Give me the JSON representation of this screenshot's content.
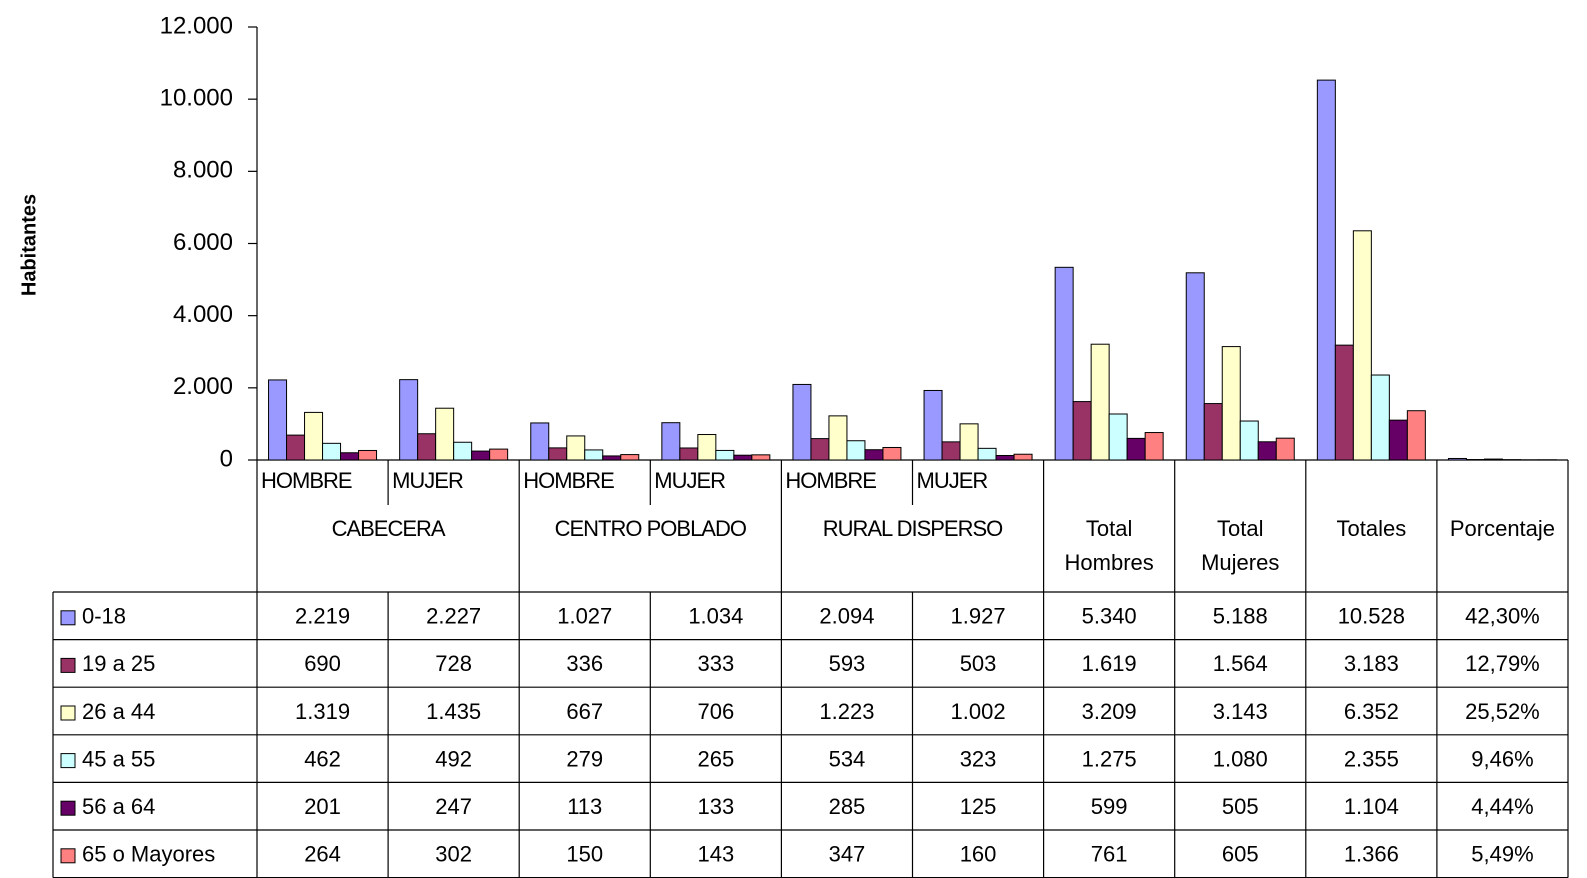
{
  "chart_data": {
    "type": "bar",
    "y_label": "Habitantes",
    "categories": [
      "HOMBRE",
      "MUJER",
      "HOMBRE",
      "MUJER",
      "HOMBRE",
      "MUJER",
      "Total Hombres",
      "Total Mujeres",
      "Totales",
      "Porcentaje"
    ],
    "category_groups": [
      "CABECERA",
      "CENTRO POBLADO",
      "RURAL DISPERSO"
    ],
    "ylim": [
      0,
      12000
    ],
    "yticks": [
      0,
      {
        "value": 2000,
        "label": "2.000"
      },
      {
        "value": 4000,
        "label": "4.000"
      },
      {
        "value": 6000,
        "label": "6.000"
      },
      {
        "value": 8000,
        "label": "8.000"
      },
      {
        "value": 10000,
        "label": "10.000"
      },
      {
        "value": 12000,
        "label": "12.000"
      }
    ],
    "series": [
      {
        "name": "0-18",
        "color": "#9999ff",
        "values": [
          2219,
          2227,
          1027,
          1034,
          2094,
          1927,
          5340,
          5188,
          10528,
          42.3
        ],
        "value_labels": [
          "2.219",
          "2.227",
          "1.027",
          "1.034",
          "2.094",
          "1.927",
          "5.340",
          "5.188",
          "10.528",
          "42,30%"
        ]
      },
      {
        "name": "19 a 25",
        "color": "#993366",
        "values": [
          690,
          728,
          336,
          333,
          593,
          503,
          1619,
          1564,
          3183,
          12.79
        ],
        "value_labels": [
          "690",
          "728",
          "336",
          "333",
          "593",
          "503",
          "1.619",
          "1.564",
          "3.183",
          "12,79%"
        ]
      },
      {
        "name": "26 a 44",
        "color": "#ffffcc",
        "values": [
          1319,
          1435,
          667,
          706,
          1223,
          1002,
          3209,
          3143,
          6352,
          25.52
        ],
        "value_labels": [
          "1.319",
          "1.435",
          "667",
          "706",
          "1.223",
          "1.002",
          "3.209",
          "3.143",
          "6.352",
          "25,52%"
        ]
      },
      {
        "name": "45 a 55",
        "color": "#ccffff",
        "values": [
          462,
          492,
          279,
          265,
          534,
          323,
          1275,
          1080,
          2355,
          9.46
        ],
        "value_labels": [
          "462",
          "492",
          "279",
          "265",
          "534",
          "323",
          "1.275",
          "1.080",
          "2.355",
          "9,46%"
        ]
      },
      {
        "name": "56 a 64",
        "color": "#660066",
        "values": [
          201,
          247,
          113,
          133,
          285,
          125,
          599,
          505,
          1104,
          4.44
        ],
        "value_labels": [
          "201",
          "247",
          "113",
          "133",
          "285",
          "125",
          "599",
          "505",
          "1.104",
          "4,44%"
        ]
      },
      {
        "name": "65 o Mayores",
        "color": "#ff8080",
        "values": [
          264,
          302,
          150,
          143,
          347,
          160,
          761,
          605,
          1366,
          5.49
        ],
        "value_labels": [
          "264",
          "302",
          "150",
          "143",
          "347",
          "160",
          "761",
          "605",
          "1.366",
          "5,49%"
        ]
      }
    ]
  }
}
